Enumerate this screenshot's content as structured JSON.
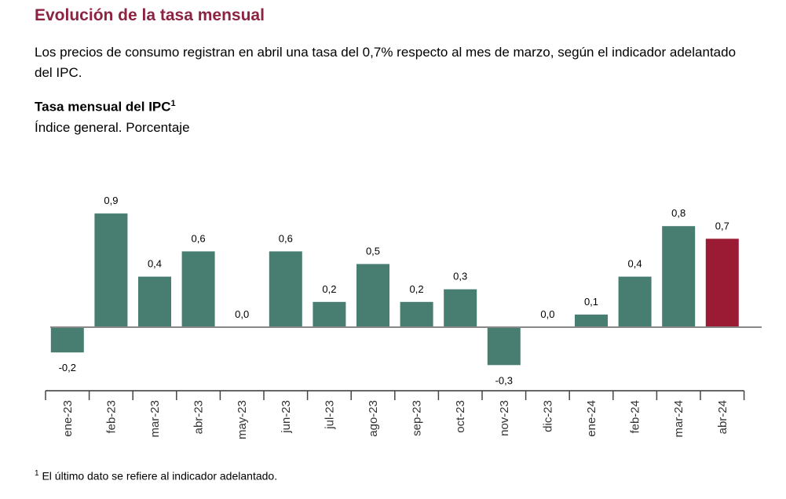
{
  "header": {
    "title": "Evolución de la tasa mensual",
    "description": "Los precios de consumo registran en abril una tasa del 0,7% respecto al mes de marzo, según el indicador adelantado del IPC."
  },
  "chart_data": {
    "type": "bar",
    "title": "Tasa mensual del IPC",
    "title_footnote": "1",
    "subtitle": "Índice general. Porcentaje",
    "categories": [
      "ene-23",
      "feb-23",
      "mar-23",
      "abr-23",
      "may-23",
      "jun-23",
      "jul-23",
      "ago-23",
      "sep-23",
      "oct-23",
      "nov-23",
      "dic-23",
      "ene-24",
      "feb-24",
      "mar-24",
      "abr-24"
    ],
    "values": [
      -0.2,
      0.9,
      0.4,
      0.6,
      0.0,
      0.6,
      0.2,
      0.5,
      0.2,
      0.3,
      -0.3,
      0.0,
      0.1,
      0.4,
      0.8,
      0.7
    ],
    "data_labels": [
      "-0,2",
      "0,9",
      "0,4",
      "0,6",
      "0,0",
      "0,6",
      "0,2",
      "0,5",
      "0,2",
      "0,3",
      "-0,3",
      "0,0",
      "0,1",
      "0,4",
      "0,8",
      "0,7"
    ],
    "colors": {
      "default": "#487d72",
      "highlight": "#9b1b35"
    },
    "highlight_index": 15,
    "grid": false
  },
  "footnote": {
    "mark": "1",
    "text": "El último dato se refiere al indicador adelantado."
  }
}
